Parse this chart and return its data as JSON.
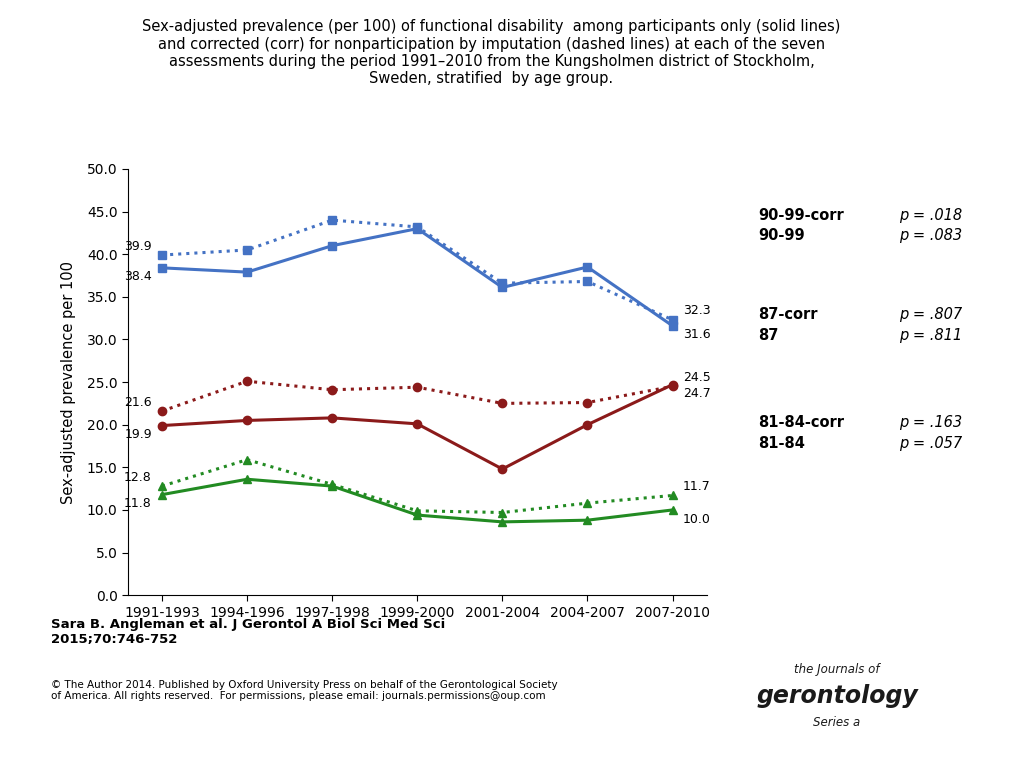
{
  "title_line1": "Sex-adjusted prevalence (per 100) of functional disability  among participants only (solid lines)",
  "title_line2": "and corrected (corr) for nonparticipation by imputation (dashed lines) at each of the seven",
  "title_line3": "assessments during the period 1991–2010 from the Kungsholmen district of Stockholm,",
  "title_line4": "Sweden, stratified  by age group.",
  "ylabel": "Sex-adjusted prevalence per 100",
  "x_labels": [
    "1991-1993",
    "1994-1996",
    "1997-1998",
    "1999-2000",
    "2001-2004",
    "2004-2007",
    "2007-2010"
  ],
  "ylim": [
    0.0,
    50.0
  ],
  "yticks": [
    0.0,
    5.0,
    10.0,
    15.0,
    20.0,
    25.0,
    30.0,
    35.0,
    40.0,
    45.0,
    50.0
  ],
  "blue_solid": [
    38.4,
    37.9,
    41.0,
    43.0,
    36.1,
    38.5,
    31.6
  ],
  "blue_dashed": [
    39.9,
    40.5,
    44.0,
    43.2,
    36.6,
    36.8,
    32.3
  ],
  "red_solid": [
    19.9,
    20.5,
    20.8,
    20.1,
    14.8,
    20.0,
    24.7
  ],
  "red_dashed": [
    21.6,
    25.1,
    24.1,
    24.4,
    22.5,
    22.6,
    24.5
  ],
  "green_solid": [
    11.8,
    13.6,
    12.8,
    9.4,
    8.6,
    8.8,
    10.0
  ],
  "green_dashed": [
    12.8,
    15.9,
    13.0,
    9.9,
    9.7,
    10.8,
    11.7
  ],
  "blue_color": "#4472C4",
  "red_color": "#8B1A1A",
  "green_color": "#228B22",
  "start_labels_dashed": [
    "39.9",
    "21.6",
    "12.8"
  ],
  "start_labels_solid": [
    "38.4",
    "19.9",
    "11.8"
  ],
  "end_labels_dashed": [
    "32.3",
    "24.5",
    "11.7"
  ],
  "end_labels_solid": [
    "31.6",
    "24.7",
    "10.0"
  ],
  "legend_labels": [
    "90-99-corr",
    "90-99",
    "87-corr",
    "87",
    "81-84-corr",
    "81-84"
  ],
  "legend_pvals": [
    "p = .018",
    "p = .083",
    "p = .807",
    "p = .811",
    "p = .163",
    "p = .057"
  ],
  "legend_colors": [
    "#4472C4",
    "#4472C4",
    "#8B1A1A",
    "#8B1A1A",
    "#228B22",
    "#228B22"
  ],
  "legend_styles": [
    "dashed",
    "solid",
    "dashed",
    "solid",
    "dashed",
    "solid"
  ],
  "footer_author": "Sara B. Angleman et al. J Gerontol A Biol Sci Med Sci\n2015;70:746-752",
  "footer_copyright": "© The Author 2014. Published by Oxford University Press on behalf of the Gerontological Society\nof America. All rights reserved.  For permissions, please email: journals.permissions@oup.com",
  "background_color": "#FFFFFF"
}
